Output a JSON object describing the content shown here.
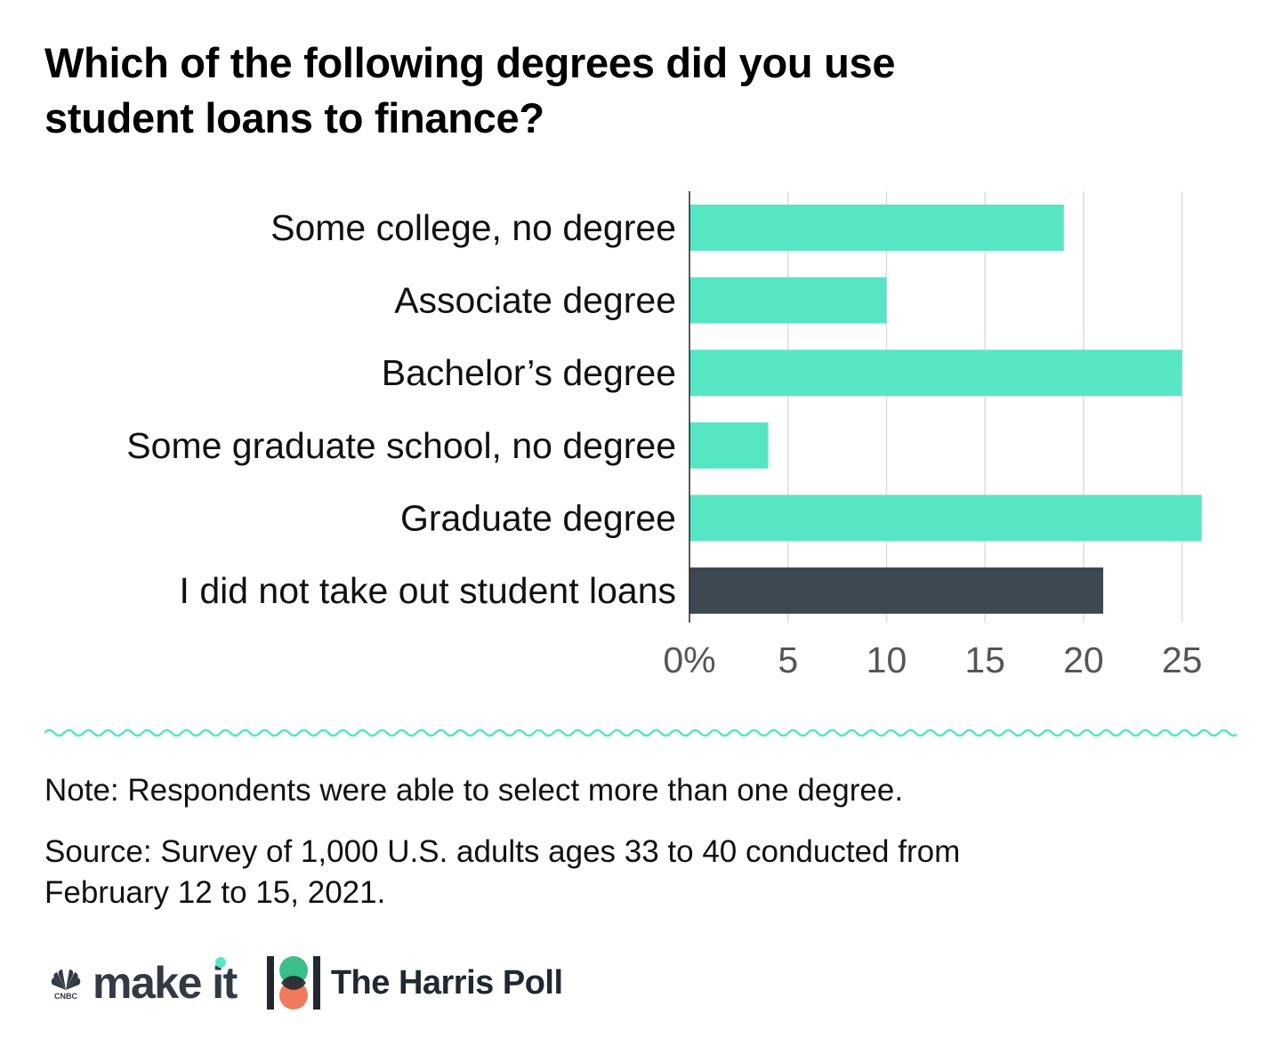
{
  "title_lines": [
    "Which of the following degrees did you use",
    "student loans to finance?"
  ],
  "note": "Note: Respondents were able to select more than one degree.",
  "source_lines": [
    "Source: Survey of 1,000 U.S. adults ages 33 to 40 conducted from",
    "February 12 to 15, 2021."
  ],
  "logos": {
    "cnbc_small": "CNBC",
    "makeit": "make it",
    "harris": "The Harris Poll"
  },
  "colors": {
    "bar": "#57e6c3",
    "bar_highlight": "#3d4852",
    "axis": "#222222",
    "grid": "#dddddd",
    "wave": "#57e6c3"
  },
  "chart_data": {
    "type": "bar",
    "orientation": "horizontal",
    "categories": [
      "Some college, no degree",
      "Associate degree",
      "Bachelor’s degree",
      "Some graduate school, no degree",
      "Graduate degree",
      "I did not take out student loans"
    ],
    "values": [
      19,
      10,
      25,
      4,
      26,
      21
    ],
    "xlim": [
      0,
      27.5
    ],
    "ticks": [
      0,
      5,
      10,
      15,
      20,
      25
    ],
    "tick_labels": [
      "0%",
      "5",
      "10",
      "15",
      "20",
      "25"
    ],
    "grid": true,
    "legend": "none"
  }
}
